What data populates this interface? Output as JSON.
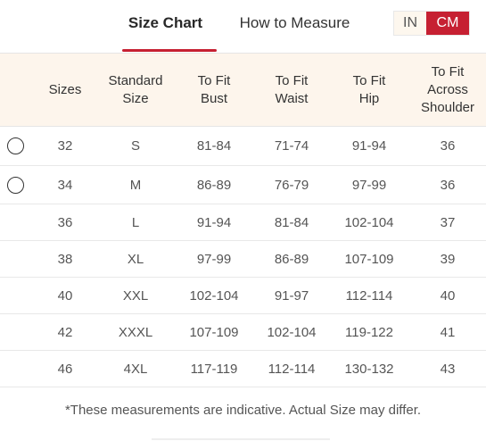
{
  "tabs": [
    {
      "label": "Size Chart",
      "active": true
    },
    {
      "label": "How to Measure",
      "active": false
    }
  ],
  "units": {
    "in_label": "IN",
    "cm_label": "CM",
    "selected": "CM"
  },
  "colors": {
    "accent": "#c62032",
    "header_bg": "#fdf5ec"
  },
  "table": {
    "headers": [
      "Sizes",
      "Standard\nSize",
      "To Fit\nBust",
      "To Fit\nWaist",
      "To Fit\nHip",
      "To Fit\nAcross\nShoulder"
    ],
    "rows": [
      {
        "size": "32",
        "standard": "S",
        "bust": "81-84",
        "waist": "71-74",
        "hip": "91-94",
        "shoulder": "36",
        "selectable": true
      },
      {
        "size": "34",
        "standard": "M",
        "bust": "86-89",
        "waist": "76-79",
        "hip": "97-99",
        "shoulder": "36",
        "selectable": true
      },
      {
        "size": "36",
        "standard": "L",
        "bust": "91-94",
        "waist": "81-84",
        "hip": "102-104",
        "shoulder": "37",
        "selectable": false
      },
      {
        "size": "38",
        "standard": "XL",
        "bust": "97-99",
        "waist": "86-89",
        "hip": "107-109",
        "shoulder": "39",
        "selectable": false
      },
      {
        "size": "40",
        "standard": "XXL",
        "bust": "102-104",
        "waist": "91-97",
        "hip": "112-114",
        "shoulder": "40",
        "selectable": false
      },
      {
        "size": "42",
        "standard": "XXXL",
        "bust": "107-109",
        "waist": "102-104",
        "hip": "119-122",
        "shoulder": "41",
        "selectable": false
      },
      {
        "size": "46",
        "standard": "4XL",
        "bust": "117-119",
        "waist": "112-114",
        "hip": "130-132",
        "shoulder": "43",
        "selectable": false
      }
    ]
  },
  "footnote": "*These measurements are indicative. Actual Size may differ."
}
